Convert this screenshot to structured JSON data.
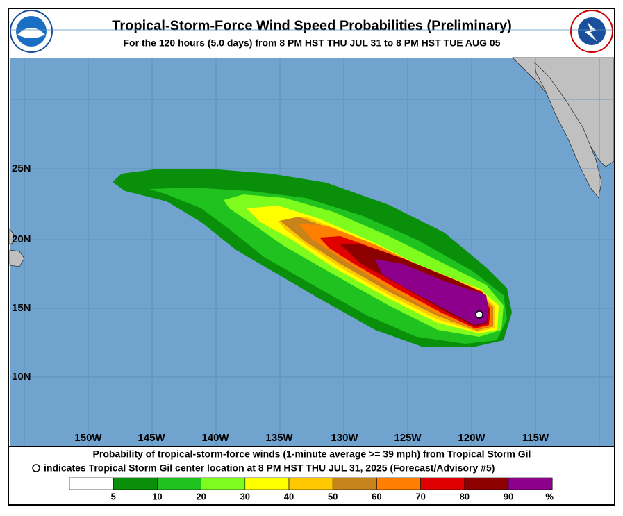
{
  "header": {
    "title": "Tropical-Storm-Force Wind Speed Probabilities (Preliminary)",
    "subtitle": "For the 120 hours (5.0 days) from 8 PM HST THU JUL 31 to 8 PM HST TUE AUG 05"
  },
  "map": {
    "lat_labels": [
      "25N",
      "20N",
      "15N",
      "10N"
    ],
    "lon_labels": [
      "150W",
      "145W",
      "140W",
      "135W",
      "130W",
      "125W",
      "120W",
      "115W"
    ]
  },
  "caption": {
    "line1": "Probability of tropical-storm-force winds (1-minute average >= 39 mph) from Tropical Storm Gil",
    "line2": "indicates Tropical Storm Gil center location at 8 PM HST THU JUL 31, 2025 (Forecast/Advisory #5)"
  },
  "legend": {
    "colors": [
      "#ffffff",
      "#0a8f0a",
      "#1fc21f",
      "#7dfc1e",
      "#ffff00",
      "#ffc800",
      "#c8841a",
      "#ff7f00",
      "#e00000",
      "#8c0000",
      "#8c008c"
    ],
    "labels": [
      "5",
      "10",
      "20",
      "30",
      "40",
      "50",
      "60",
      "70",
      "80",
      "90"
    ],
    "unit": "%"
  }
}
